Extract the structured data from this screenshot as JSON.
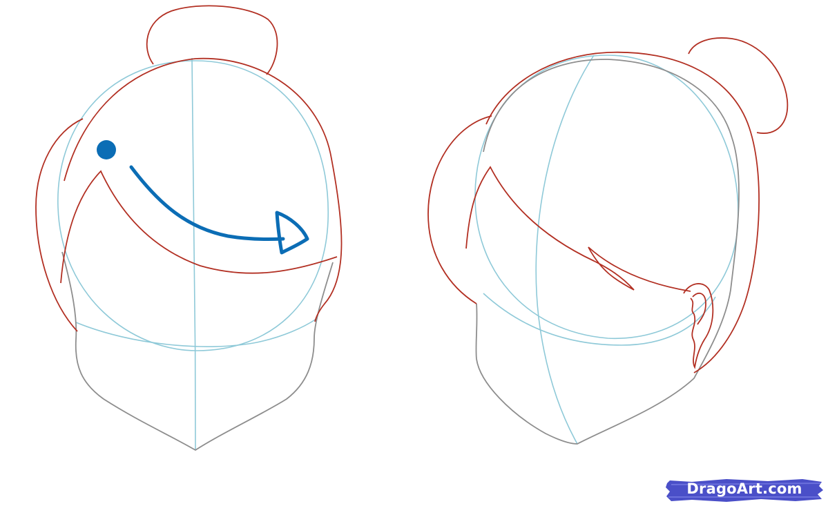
{
  "image": {
    "colors": {
      "guide_lines": "#8ec9d8",
      "face_outline": "#8d8d8d",
      "hair_outline": "#b22f22",
      "arrow": "#0b6db5",
      "watermark_brush": "#4a4fc8",
      "watermark_text": "#ffffff"
    }
  },
  "watermark": {
    "text": "DragoArt.com"
  }
}
